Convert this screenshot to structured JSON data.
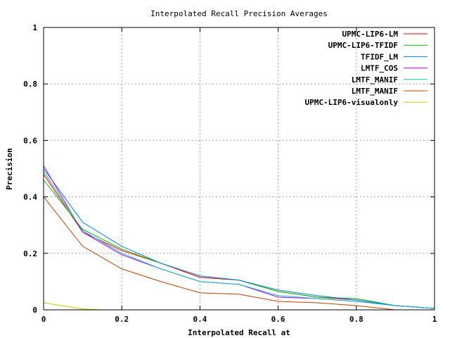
{
  "chart_data": {
    "type": "line",
    "title": "Interpolated Recall Precision Averages",
    "xlabel": "Interpolated Recall at",
    "ylabel": "Precision",
    "xlim": [
      0,
      1
    ],
    "ylim": [
      0,
      1
    ],
    "grid": true,
    "legend_position": "top-right",
    "x_ticks": [
      {
        "value": 0,
        "label": "0"
      },
      {
        "value": 0.2,
        "label": "0.2"
      },
      {
        "value": 0.4,
        "label": "0.4"
      },
      {
        "value": 0.6,
        "label": "0.6"
      },
      {
        "value": 0.8,
        "label": "0.8"
      },
      {
        "value": 1,
        "label": "1"
      }
    ],
    "y_ticks": [
      {
        "value": 0,
        "label": "0"
      },
      {
        "value": 0.2,
        "label": "0.2"
      },
      {
        "value": 0.4,
        "label": "0.4"
      },
      {
        "value": 0.6,
        "label": "0.6"
      },
      {
        "value": 0.8,
        "label": "0.8"
      },
      {
        "value": 1,
        "label": "1"
      }
    ],
    "x": [
      0,
      0.1,
      0.2,
      0.3,
      0.4,
      0.5,
      0.6,
      0.7,
      0.8,
      0.9,
      1.0
    ],
    "series": [
      {
        "name": "UPMC-LIP6-LM",
        "color": "#ff0000",
        "values": [
          0.48,
          0.275,
          0.21,
          0.165,
          0.115,
          0.105,
          0.065,
          0.045,
          0.035,
          0.015,
          0.005
        ]
      },
      {
        "name": "UPMC-LIP6-TFIDF",
        "color": "#00c000",
        "values": [
          0.46,
          0.285,
          0.215,
          0.165,
          0.12,
          0.105,
          0.065,
          0.045,
          0.04,
          0.015,
          0.005
        ]
      },
      {
        "name": "TFIDF_LM",
        "color": "#0080ff",
        "values": [
          0.5,
          0.31,
          0.225,
          0.165,
          0.12,
          0.105,
          0.07,
          0.05,
          0.035,
          0.015,
          0.005
        ]
      },
      {
        "name": "LMTF_COS",
        "color": "#c000ff",
        "values": [
          0.51,
          0.275,
          0.195,
          0.145,
          0.1,
          0.09,
          0.045,
          0.04,
          0.03,
          0.015,
          0.005
        ]
      },
      {
        "name": "LMTF_MANIF",
        "color": "#00c0c0",
        "values": [
          0.49,
          0.28,
          0.2,
          0.145,
          0.1,
          0.09,
          0.05,
          0.04,
          0.03,
          0.015,
          0.005
        ]
      },
      {
        "name": "LMTF_MANIF",
        "color": "#c04000",
        "values": [
          0.4,
          0.225,
          0.145,
          0.1,
          0.06,
          0.055,
          0.03,
          0.025,
          0.015,
          0.0,
          0.0
        ]
      },
      {
        "name": "UPMC-LIP6-visualonly",
        "color": "#c8c800",
        "x": [
          0,
          0.1,
          0.15
        ],
        "values": [
          0.025,
          0.003,
          0.0
        ]
      }
    ]
  }
}
